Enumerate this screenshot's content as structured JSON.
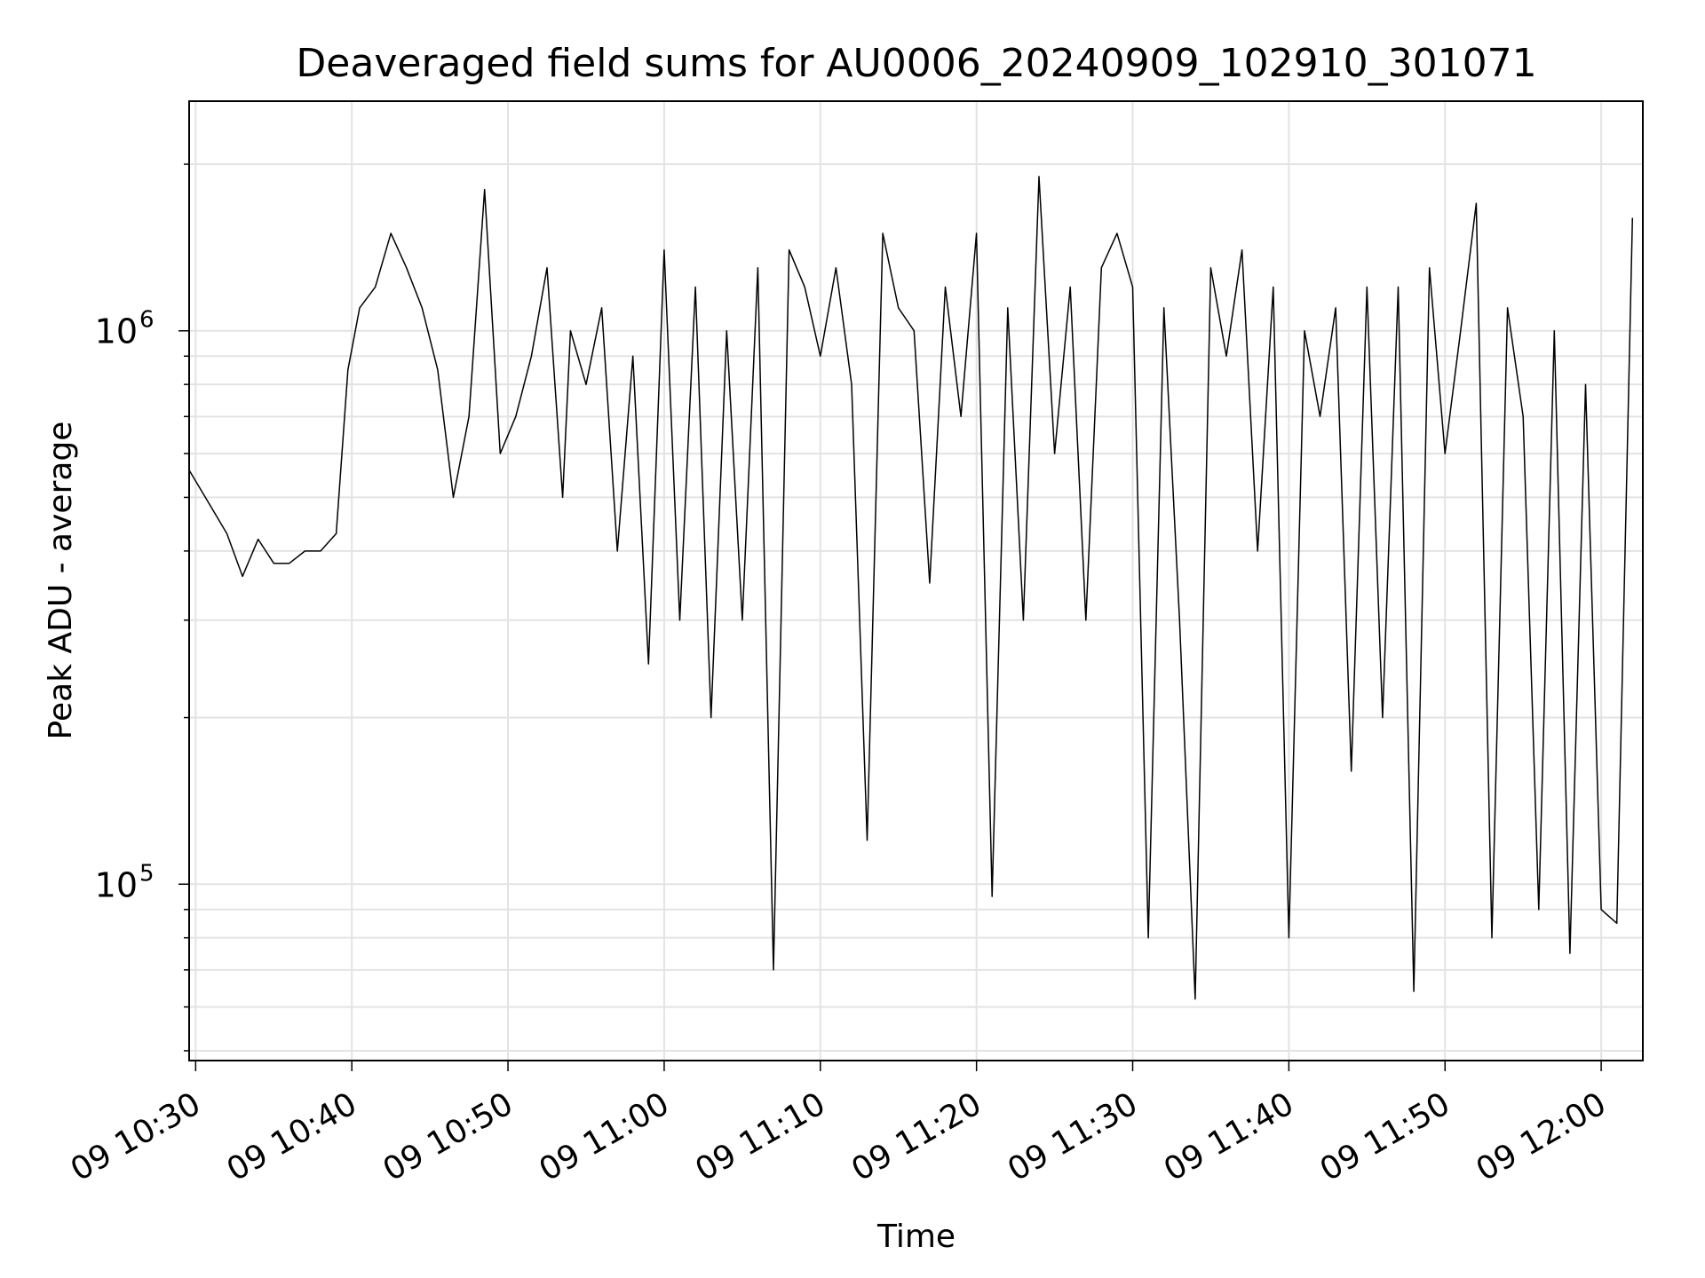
{
  "chart_data": {
    "type": "line",
    "title": "Deaveraged field sums for AU0006_20240909_102910_301071",
    "xlabel": "Time",
    "ylabel": "Peak ADU - average",
    "yscale": "log",
    "ylim": [
      48000,
      2600000
    ],
    "xlim": [
      "09 10:29:35",
      "09 12:02:40"
    ],
    "grid": true,
    "line_color": "#000000",
    "x_ticks": [
      "09 10:30",
      "09 10:40",
      "09 10:50",
      "09 11:00",
      "09 11:10",
      "09 11:20",
      "09 11:30",
      "09 11:40",
      "09 11:50",
      "09 12:00"
    ],
    "y_ticks": [
      {
        "value": 100000,
        "base": "10",
        "exp": "5"
      },
      {
        "value": 1000000,
        "base": "10",
        "exp": "6"
      }
    ],
    "series": [
      {
        "name": "",
        "x": [
          "09 10:29:35",
          "09 10:31:00",
          "09 10:32:00",
          "09 10:33:00",
          "09 10:34:00",
          "09 10:35:00",
          "09 10:36:00",
          "09 10:37:00",
          "09 10:38:00",
          "09 10:39:00",
          "09 10:39:45",
          "09 10:40:30",
          "09 10:41:30",
          "09 10:42:30",
          "09 10:43:30",
          "09 10:44:30",
          "09 10:45:30",
          "09 10:46:30",
          "09 10:47:30",
          "09 10:48:30",
          "09 10:49:30",
          "09 10:50:30",
          "09 10:51:30",
          "09 10:52:30",
          "09 10:53:30",
          "09 10:54:00",
          "09 10:55:00",
          "09 10:56:00",
          "09 10:57:00",
          "09 10:58:00",
          "09 10:59:00",
          "09 11:00:00",
          "09 11:01:00",
          "09 11:02:00",
          "09 11:03:00",
          "09 11:04:00",
          "09 11:05:00",
          "09 11:06:00",
          "09 11:07:00",
          "09 11:08:00",
          "09 11:09:00",
          "09 11:10:00",
          "09 11:11:00",
          "09 11:12:00",
          "09 11:13:00",
          "09 11:14:00",
          "09 11:15:00",
          "09 11:16:00",
          "09 11:17:00",
          "09 11:18:00",
          "09 11:19:00",
          "09 11:20:00",
          "09 11:21:00",
          "09 11:22:00",
          "09 11:23:00",
          "09 11:24:00",
          "09 11:25:00",
          "09 11:26:00",
          "09 11:27:00",
          "09 11:28:00",
          "09 11:29:00",
          "09 11:30:00",
          "09 11:31:00",
          "09 11:32:00",
          "09 11:33:00",
          "09 11:34:00",
          "09 11:35:00",
          "09 11:36:00",
          "09 11:37:00",
          "09 11:38:00",
          "09 11:39:00",
          "09 11:40:00",
          "09 11:41:00",
          "09 11:42:00",
          "09 11:43:00",
          "09 11:44:00",
          "09 11:45:00",
          "09 11:46:00",
          "09 11:47:00",
          "09 11:48:00",
          "09 11:49:00",
          "09 11:50:00",
          "09 11:51:00",
          "09 11:52:00",
          "09 11:53:00",
          "09 11:54:00",
          "09 11:55:00",
          "09 11:56:00",
          "09 11:57:00",
          "09 11:58:00",
          "09 11:59:00",
          "09 12:00:00",
          "09 12:01:00",
          "09 12:02:00"
        ],
        "y": [
          560000,
          480000,
          430000,
          360000,
          420000,
          380000,
          380000,
          400000,
          400000,
          430000,
          850000,
          1100000,
          1200000,
          1500000,
          1300000,
          1100000,
          850000,
          500000,
          700000,
          1800000,
          600000,
          700000,
          900000,
          1300000,
          500000,
          1000000,
          800000,
          1100000,
          400000,
          900000,
          250000,
          1400000,
          300000,
          1200000,
          200000,
          1000000,
          300000,
          1300000,
          70000,
          1400000,
          1200000,
          900000,
          1300000,
          800000,
          120000,
          1500000,
          1100000,
          1000000,
          350000,
          1200000,
          700000,
          1500000,
          95000,
          1100000,
          300000,
          1900000,
          600000,
          1200000,
          300000,
          1300000,
          1500000,
          1200000,
          80000,
          1100000,
          300000,
          62000,
          1300000,
          900000,
          1400000,
          400000,
          1200000,
          80000,
          1000000,
          700000,
          1100000,
          160000,
          1200000,
          200000,
          1200000,
          64000,
          1300000,
          600000,
          1000000,
          1700000,
          80000,
          1100000,
          700000,
          90000,
          1000000,
          75000,
          800000,
          90000,
          85000,
          1600000
        ]
      }
    ]
  }
}
